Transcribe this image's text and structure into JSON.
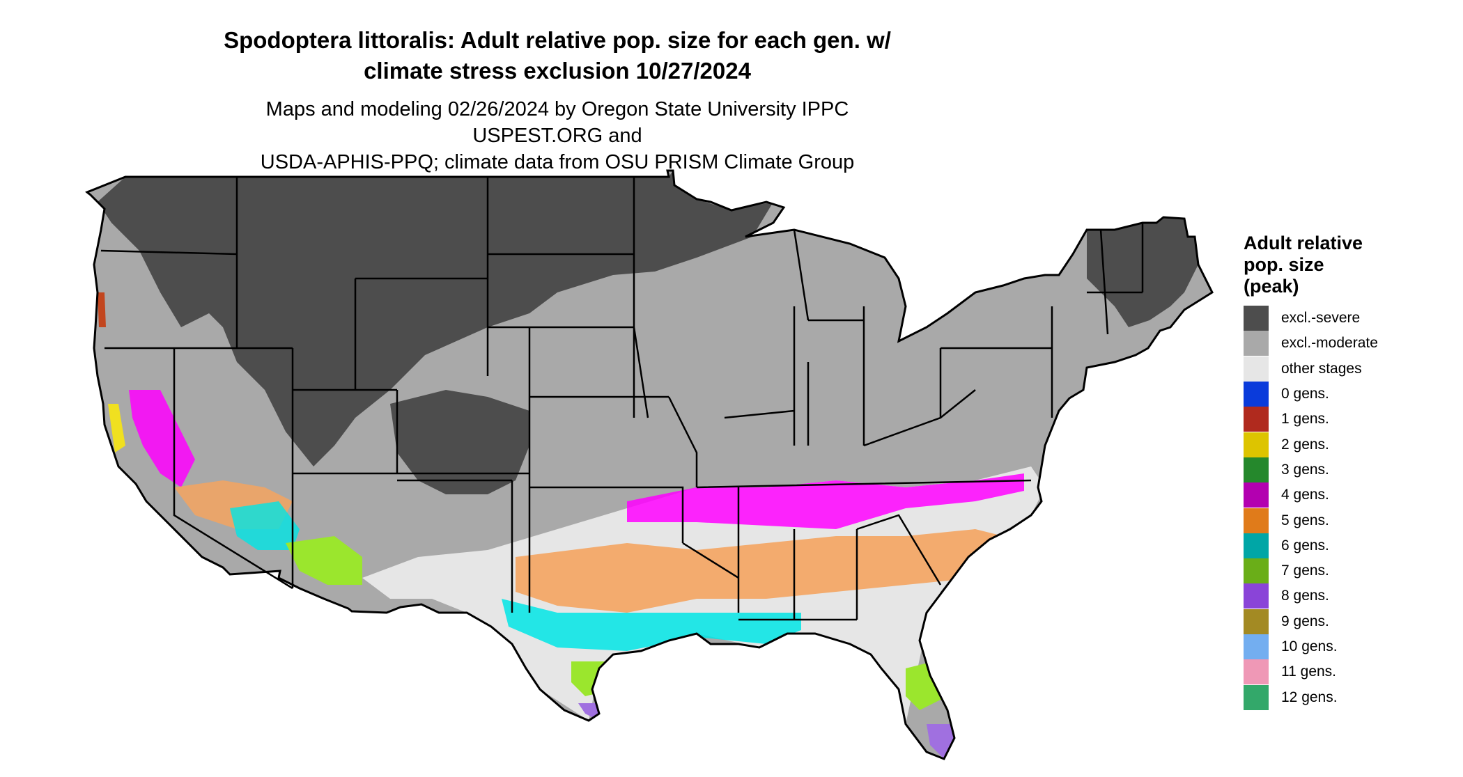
{
  "title_line1": "Spodoptera littoralis: Adult relative pop. size for each gen. w/",
  "title_line2": "climate stress exclusion 10/27/2024",
  "subtitle_line1": "Maps and modeling 02/26/2024 by Oregon State University IPPC USPEST.ORG and",
  "subtitle_line2": "USDA-APHIS-PPQ; climate data from OSU PRISM Climate Group",
  "legend": {
    "title_lines": [
      "Adult relative",
      "pop. size",
      "(peak)"
    ],
    "items": [
      {
        "label": "excl.-severe",
        "color": "#4d4d4d"
      },
      {
        "label": "excl.-moderate",
        "color": "#a9a9a9"
      },
      {
        "label": "other stages",
        "color": "#e6e6e6"
      },
      {
        "label": "0 gens.",
        "color": "#0a3bdb"
      },
      {
        "label": "1 gens.",
        "color": "#b02a1e"
      },
      {
        "label": "2 gens.",
        "color": "#ddc400"
      },
      {
        "label": "3 gens.",
        "color": "#25882c"
      },
      {
        "label": "4 gens.",
        "color": "#b300b0"
      },
      {
        "label": "5 gens.",
        "color": "#e07b1a"
      },
      {
        "label": "6 gens.",
        "color": "#00a6a6"
      },
      {
        "label": "7 gens.",
        "color": "#6aae18"
      },
      {
        "label": "8 gens.",
        "color": "#8a44d8"
      },
      {
        "label": "9 gens.",
        "color": "#a38a23"
      },
      {
        "label": "10 gens.",
        "color": "#73aef0"
      },
      {
        "label": "11 gens.",
        "color": "#ef98b6"
      },
      {
        "label": "12 gens.",
        "color": "#33a86a"
      }
    ]
  },
  "map_colors": {
    "severe": "#4d4d4d",
    "moderate": "#a9a9a9",
    "other": "#e6e6e6",
    "gen4": "#ff00ff",
    "gen5": "#f4a460",
    "gen6": "#00e5e5",
    "gen7": "#9be62d",
    "gen8": "#a070e0",
    "gen1": "#c2461f",
    "gen2": "#f0e020",
    "border": "#000000"
  }
}
